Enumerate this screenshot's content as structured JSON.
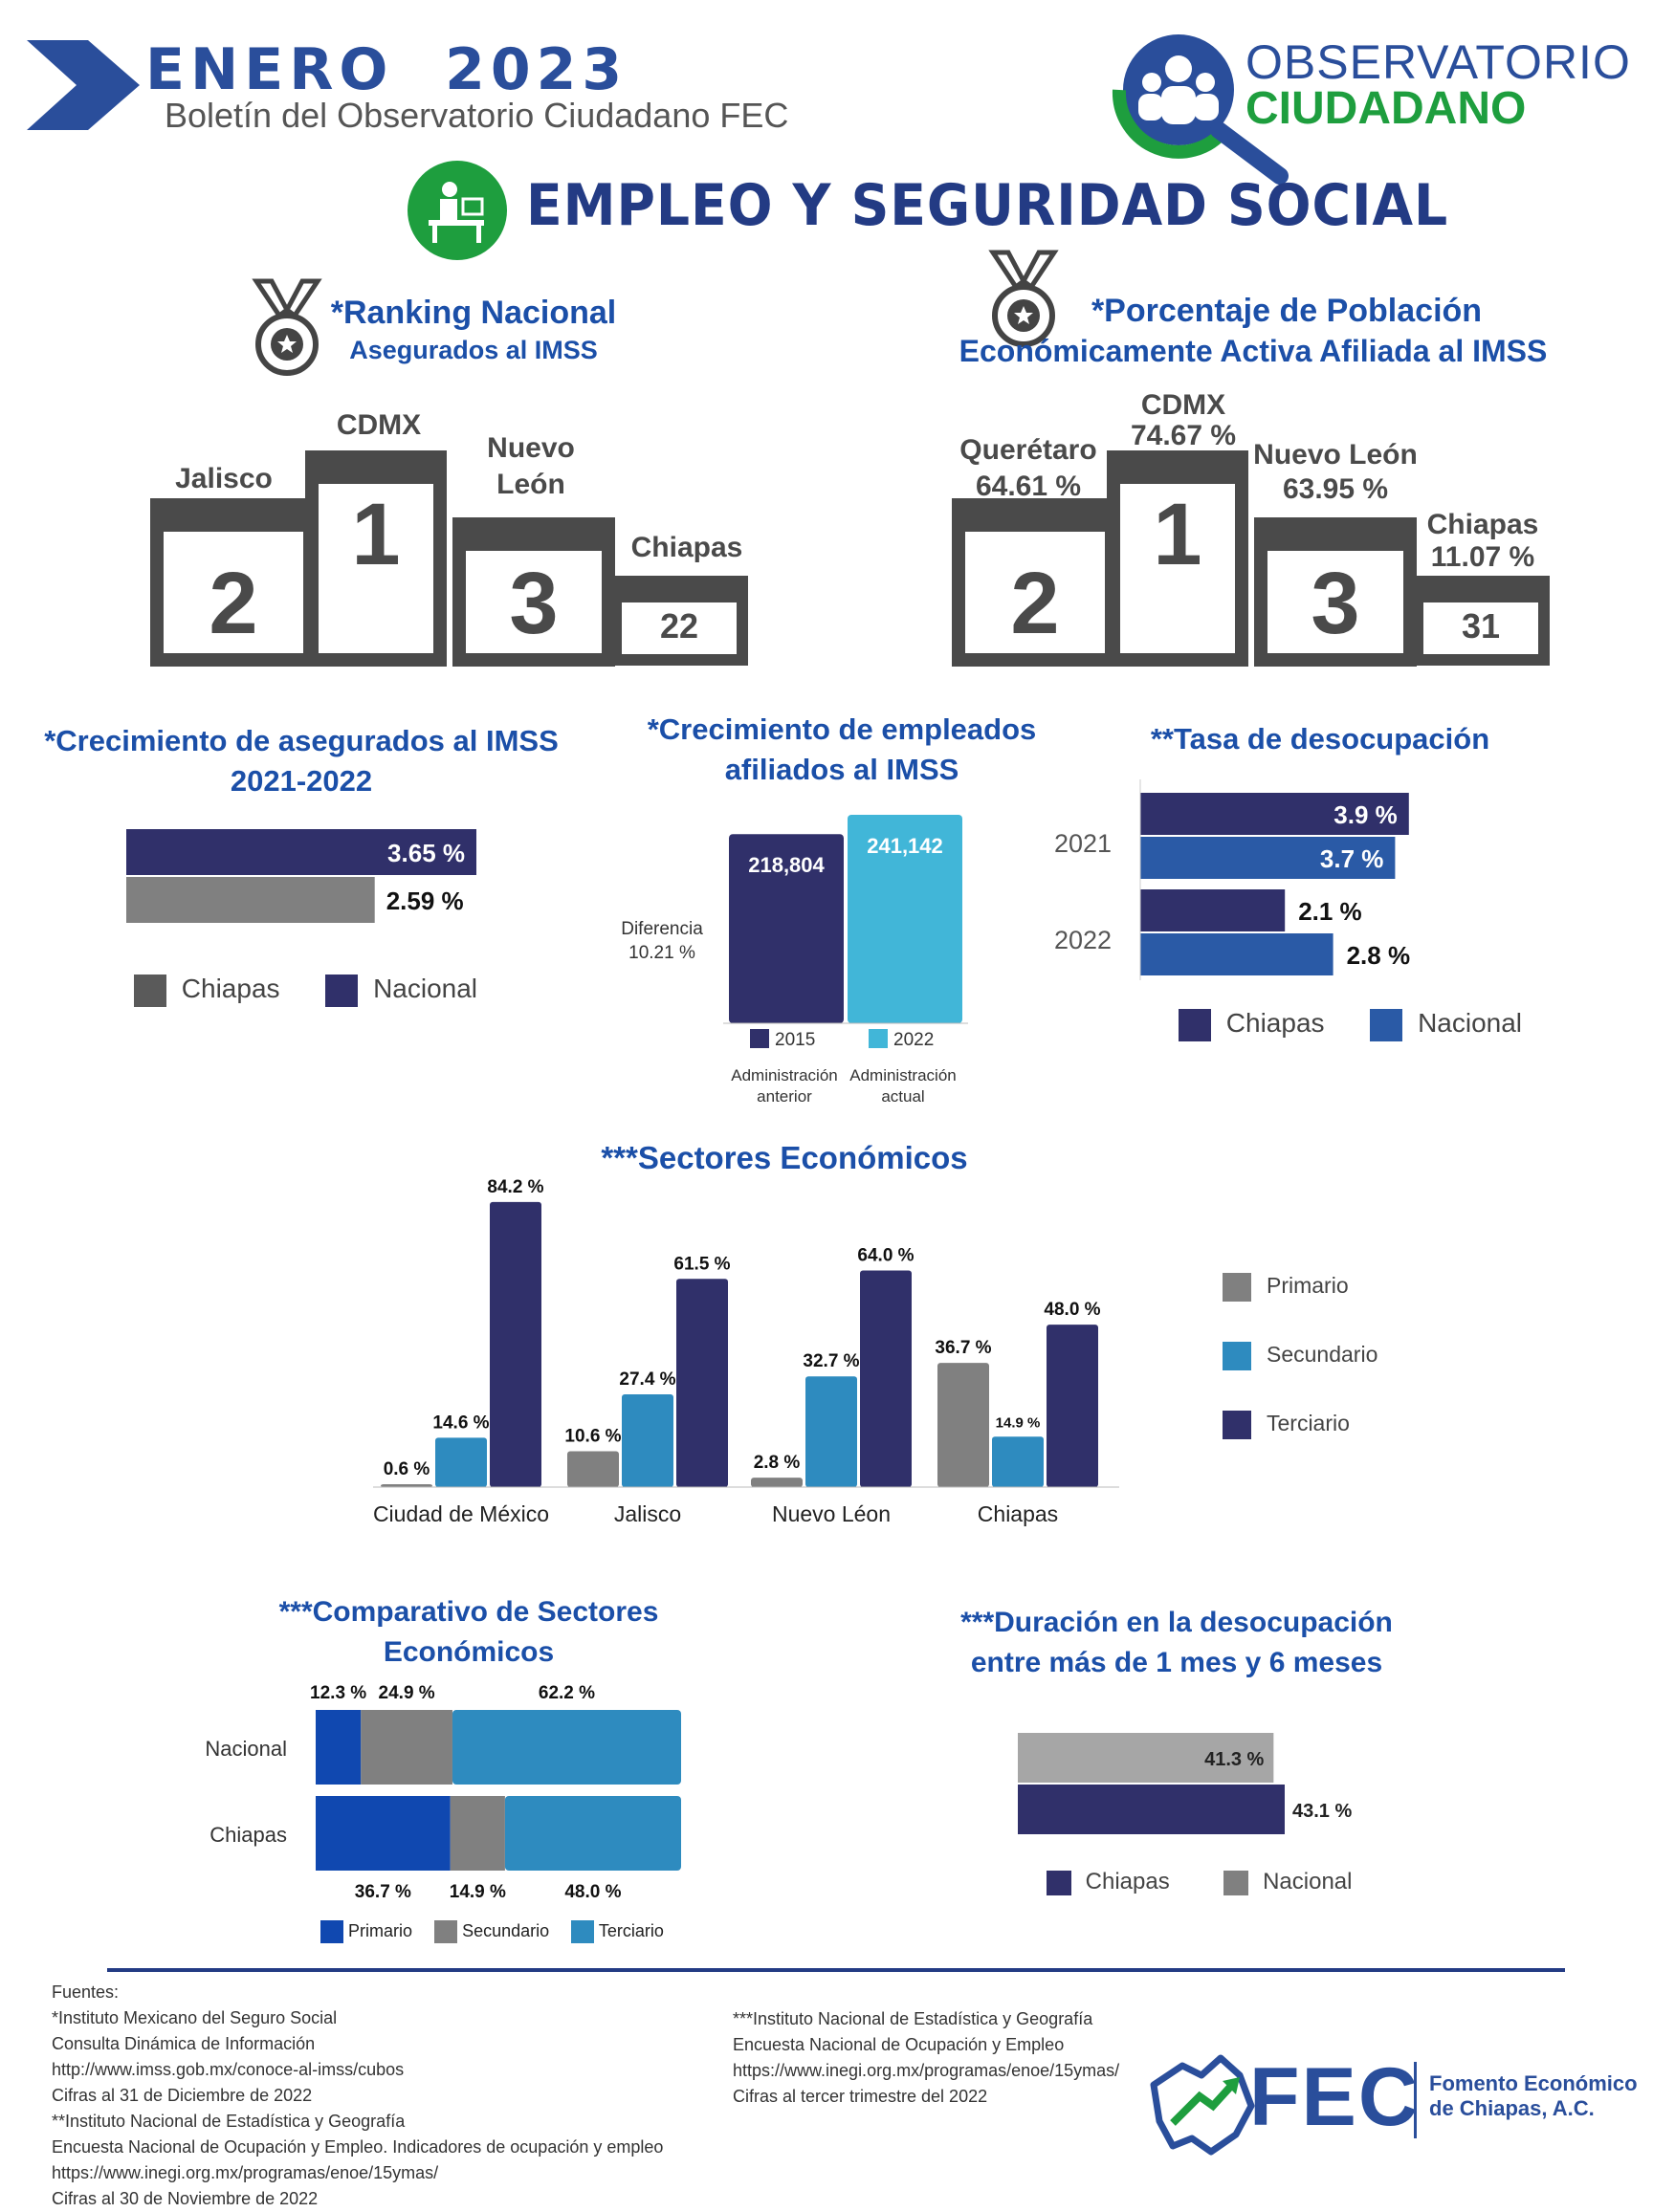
{
  "header": {
    "month_year": "ENERO  2023",
    "subtitle": "Boletín del Observatorio Ciudadano FEC",
    "logo_line1": "OBSERVATORIO",
    "logo_line2": "CIUDADANO",
    "section_title": "EMPLEO Y SEGURIDAD SOCIAL"
  },
  "colors": {
    "navy": "#30306a",
    "gray": "#5a5a5a",
    "lightgray": "#808080",
    "cyan": "#41b6d8",
    "midblue": "#2e8bbf",
    "royal": "#2a5aa6",
    "green": "#1e9e3e",
    "title_blue": "#1b4fa8"
  },
  "ranking_asegurados": {
    "title_line1": "*Ranking Nacional",
    "title_line2": "Asegurados al IMSS",
    "items": [
      {
        "label": "Jalisco",
        "rank": "2"
      },
      {
        "label": "CDMX",
        "rank": "1"
      },
      {
        "label_line1": "Nuevo",
        "label_line2": "León",
        "rank": "3"
      },
      {
        "label": "Chiapas",
        "rank": "22"
      }
    ]
  },
  "ranking_pea": {
    "title_line1": "*Porcentaje de Población",
    "title_line2": "Económicamente  Activa Afiliada al IMSS",
    "items": [
      {
        "label": "Querétaro",
        "value": "64.61 %",
        "rank": "2"
      },
      {
        "label": "CDMX",
        "value": "74.67 %",
        "rank": "1"
      },
      {
        "label": "Nuevo León",
        "value": "63.95 %",
        "rank": "3"
      },
      {
        "label": "Chiapas",
        "value": "11.07 %",
        "rank": "31"
      }
    ]
  },
  "chart_data": [
    {
      "type": "bar",
      "orientation": "horizontal",
      "title": "*Crecimiento de asegurados al IMSS 2021-2022",
      "series": [
        {
          "name": "Nacional",
          "values": [
            3.65
          ],
          "label": "3.65 %"
        },
        {
          "name": "Chiapas",
          "values": [
            2.59
          ],
          "label": "2.59 %"
        }
      ],
      "legend": [
        "Chiapas",
        "Nacional"
      ]
    },
    {
      "type": "bar",
      "title": "*Crecimiento de empleados afiliados al IMSS",
      "categories": [
        "2015",
        "2022"
      ],
      "values": [
        218804,
        241142
      ],
      "value_labels": [
        "218,804",
        "241,142"
      ],
      "annotation_line1": "Diferencia",
      "annotation_line2": "10.21 %",
      "sublabels": [
        [
          "Administración",
          "anterior"
        ],
        [
          "Administración",
          "actual"
        ]
      ]
    },
    {
      "type": "bar",
      "orientation": "horizontal",
      "title": "**Tasa de desocupación",
      "categories": [
        "2021",
        "2022"
      ],
      "series": [
        {
          "name": "Chiapas",
          "values": [
            3.9,
            2.1
          ],
          "labels": [
            "3.9 %",
            "2.1 %"
          ]
        },
        {
          "name": "Nacional",
          "values": [
            3.7,
            2.8
          ],
          "labels": [
            "3.7 %",
            "2.8 %"
          ]
        }
      ]
    },
    {
      "type": "bar",
      "title": "***Sectores Económicos",
      "categories": [
        "Ciudad de México",
        "Jalisco",
        "Nuevo Léon",
        "Chiapas"
      ],
      "series": [
        {
          "name": "Primario",
          "values": [
            0.6,
            10.6,
            2.8,
            36.7
          ],
          "labels": [
            "0.6 %",
            "10.6 %",
            "2.8 %",
            "36.7 %"
          ]
        },
        {
          "name": "Secundario",
          "values": [
            14.6,
            27.4,
            32.7,
            14.9
          ],
          "labels": [
            "14.6 %",
            "27.4 %",
            "32.7 %",
            "14.9 %"
          ]
        },
        {
          "name": "Terciario",
          "values": [
            84.2,
            61.5,
            64.0,
            48.0
          ],
          "labels": [
            "84.2 %",
            "61.5 %",
            "64.0 %",
            "48.0 %"
          ]
        }
      ]
    },
    {
      "type": "bar",
      "orientation": "horizontal",
      "stacked": true,
      "title": "***Comparativo de Sectores Económicos",
      "categories": [
        "Nacional",
        "Chiapas"
      ],
      "series": [
        {
          "name": "Primario",
          "values": [
            12.3,
            36.7
          ],
          "labels": [
            "12.3 %",
            "36.7 %"
          ]
        },
        {
          "name": "Secundario",
          "values": [
            24.9,
            14.9
          ],
          "labels": [
            "24.9 %",
            "14.9 %"
          ]
        },
        {
          "name": "Terciario",
          "values": [
            62.2,
            48.0
          ],
          "labels": [
            "62.2 %",
            "48.0 %"
          ]
        }
      ]
    },
    {
      "type": "bar",
      "orientation": "horizontal",
      "title": "***Duración en la desocupación entre más de 1 mes y 6 meses",
      "series": [
        {
          "name": "Nacional",
          "values": [
            41.3
          ],
          "label": "41.3 %"
        },
        {
          "name": "Chiapas",
          "values": [
            43.1
          ],
          "label": "43.1 %"
        }
      ],
      "legend": [
        "Chiapas",
        "Nacional"
      ]
    }
  ],
  "titles": {
    "crec_aseg_l1": "*Crecimiento de asegurados al IMSS",
    "crec_aseg_l2": "2021-2022",
    "crec_emp_l1": "*Crecimiento de empleados",
    "crec_emp_l2": "afiliados al IMSS",
    "desoc": "**Tasa de desocupación",
    "sectores": "***Sectores Económicos",
    "comp_l1": "***Comparativo de Sectores",
    "comp_l2": "Económicos",
    "dur_l1": "***Duración en la desocupación",
    "dur_l2": "entre más de 1 mes y 6 meses"
  },
  "footer": {
    "left": [
      "Fuentes:",
      "*Instituto Mexicano del Seguro Social",
      "Consulta Dinámica de Información",
      "http://www.imss.gob.mx/conoce-al-imss/cubos",
      "Cifras al 31 de Diciembre de 2022",
      "**Instituto Nacional de Estadística y Geografía",
      "Encuesta Nacional de Ocupación y Empleo. Indicadores de ocupación y empleo",
      "https://www.inegi.org.mx/programas/enoe/15ymas/",
      "Cifras al 30 de Noviembre de 2022"
    ],
    "right": [
      "***Instituto Nacional de Estadística y Geografía",
      "Encuesta Nacional de Ocupación y Empleo",
      "https://www.inegi.org.mx/programas/enoe/15ymas/",
      "Cifras al tercer trimestre del 2022"
    ],
    "fec_logo": "FEC",
    "fec_name_l1": "Fomento Económico",
    "fec_name_l2": "de Chiapas, A.C."
  }
}
